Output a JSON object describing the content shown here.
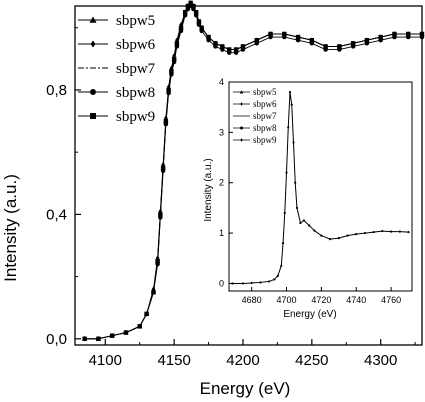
{
  "chart_data": [
    {
      "type": "scatter",
      "xlabel": "Energy (eV)",
      "ylabel": "Intensity (a.u.)",
      "xlim": [
        4078,
        4330
      ],
      "ylim": [
        -0.02,
        1.07
      ],
      "x_ticks": [
        {
          "value": 4100,
          "label": "4100"
        },
        {
          "value": 4150,
          "label": "4150"
        },
        {
          "value": 4200,
          "label": "4200"
        },
        {
          "value": 4250,
          "label": "4250"
        },
        {
          "value": 4300,
          "label": "4300"
        }
      ],
      "y_ticks": [
        {
          "value": 0.0,
          "label": "0,0"
        },
        {
          "value": 0.4,
          "label": "0,4"
        },
        {
          "value": 0.8,
          "label": "0,8"
        }
      ],
      "legend_position": "top-left",
      "legend_labels": [
        "sbpw5",
        "sbpw6",
        "sbpw7",
        "sbpw8",
        "sbpw9"
      ],
      "series": [
        {
          "name": "sbpw5",
          "marker": "triangle",
          "x": [
            4085,
            4095,
            4105,
            4115,
            4125,
            4130,
            4135,
            4138,
            4140,
            4142,
            4144,
            4146,
            4148,
            4150,
            4152,
            4155,
            4158,
            4160,
            4162,
            4164,
            4166,
            4168,
            4170,
            4175,
            4180,
            4185,
            4190,
            4195,
            4200,
            4210,
            4220,
            4230,
            4240,
            4250,
            4260,
            4270,
            4280,
            4290,
            4300,
            4310,
            4320,
            4330
          ],
          "y": [
            0.0,
            0.0,
            0.01,
            0.02,
            0.04,
            0.08,
            0.15,
            0.25,
            0.4,
            0.55,
            0.7,
            0.8,
            0.86,
            0.9,
            0.95,
            1.0,
            1.05,
            1.07,
            1.08,
            1.07,
            1.05,
            1.02,
            1.0,
            0.97,
            0.95,
            0.94,
            0.93,
            0.93,
            0.94,
            0.96,
            0.98,
            0.98,
            0.97,
            0.96,
            0.94,
            0.94,
            0.95,
            0.96,
            0.97,
            0.98,
            0.98,
            0.98
          ]
        },
        {
          "name": "sbpw6",
          "marker": "diamond",
          "x": [
            4085,
            4095,
            4105,
            4115,
            4125,
            4130,
            4135,
            4138,
            4140,
            4142,
            4144,
            4146,
            4148,
            4150,
            4152,
            4155,
            4158,
            4160,
            4162,
            4164,
            4166,
            4168,
            4170,
            4175,
            4180,
            4185,
            4190,
            4195,
            4200,
            4210,
            4220,
            4230,
            4240,
            4250,
            4260,
            4270,
            4280,
            4290,
            4300,
            4310,
            4320,
            4330
          ],
          "y": [
            0.0,
            0.0,
            0.01,
            0.02,
            0.04,
            0.08,
            0.16,
            0.26,
            0.41,
            0.56,
            0.71,
            0.81,
            0.87,
            0.91,
            0.96,
            1.01,
            1.05,
            1.07,
            1.08,
            1.07,
            1.05,
            1.02,
            1.0,
            0.97,
            0.95,
            0.94,
            0.93,
            0.93,
            0.94,
            0.96,
            0.98,
            0.98,
            0.97,
            0.96,
            0.94,
            0.94,
            0.95,
            0.96,
            0.97,
            0.98,
            0.98,
            0.98
          ]
        },
        {
          "name": "sbpw7",
          "marker": "none",
          "x": [
            4085,
            4095,
            4105,
            4115,
            4125,
            4130,
            4135,
            4138,
            4140,
            4142,
            4144,
            4146,
            4148,
            4150,
            4152,
            4155,
            4158,
            4160,
            4162,
            4164,
            4166,
            4168,
            4170,
            4175,
            4180,
            4185,
            4190,
            4195,
            4200,
            4210,
            4220,
            4230,
            4240,
            4250,
            4260,
            4270,
            4280,
            4290,
            4300,
            4310,
            4320,
            4330
          ],
          "y": [
            0.0,
            0.0,
            0.01,
            0.02,
            0.04,
            0.08,
            0.15,
            0.25,
            0.4,
            0.55,
            0.7,
            0.8,
            0.86,
            0.9,
            0.95,
            1.0,
            1.05,
            1.07,
            1.08,
            1.07,
            1.05,
            1.02,
            1.0,
            0.97,
            0.95,
            0.94,
            0.93,
            0.93,
            0.94,
            0.96,
            0.98,
            0.98,
            0.97,
            0.96,
            0.94,
            0.94,
            0.95,
            0.96,
            0.97,
            0.98,
            0.98,
            0.98
          ]
        },
        {
          "name": "sbpw8",
          "marker": "circle",
          "x": [
            4085,
            4095,
            4105,
            4115,
            4125,
            4130,
            4135,
            4138,
            4140,
            4142,
            4144,
            4146,
            4148,
            4150,
            4152,
            4155,
            4158,
            4160,
            4162,
            4164,
            4166,
            4168,
            4170,
            4175,
            4180,
            4185,
            4190,
            4195,
            4200,
            4210,
            4220,
            4230,
            4240,
            4250,
            4260,
            4270,
            4280,
            4290,
            4300,
            4310,
            4320,
            4330
          ],
          "y": [
            0.0,
            0.0,
            0.01,
            0.02,
            0.04,
            0.08,
            0.15,
            0.24,
            0.39,
            0.54,
            0.69,
            0.79,
            0.85,
            0.89,
            0.94,
            0.99,
            1.04,
            1.06,
            1.07,
            1.06,
            1.04,
            1.01,
            0.99,
            0.96,
            0.94,
            0.93,
            0.92,
            0.92,
            0.93,
            0.95,
            0.97,
            0.97,
            0.96,
            0.95,
            0.93,
            0.93,
            0.94,
            0.95,
            0.96,
            0.97,
            0.97,
            0.97
          ]
        },
        {
          "name": "sbpw9",
          "marker": "square",
          "x": [
            4085,
            4095,
            4105,
            4115,
            4125,
            4130,
            4135,
            4138,
            4140,
            4142,
            4144,
            4146,
            4148,
            4150,
            4152,
            4155,
            4158,
            4160,
            4162,
            4164,
            4166,
            4168,
            4170,
            4175,
            4180,
            4185,
            4190,
            4195,
            4200,
            4210,
            4220,
            4230,
            4240,
            4250,
            4260,
            4270,
            4280,
            4290,
            4300,
            4310,
            4320,
            4330
          ],
          "y": [
            0.0,
            0.0,
            0.01,
            0.02,
            0.04,
            0.08,
            0.15,
            0.25,
            0.4,
            0.55,
            0.7,
            0.8,
            0.86,
            0.9,
            0.95,
            1.0,
            1.05,
            1.07,
            1.08,
            1.07,
            1.05,
            1.02,
            1.0,
            0.97,
            0.95,
            0.94,
            0.93,
            0.93,
            0.94,
            0.96,
            0.98,
            0.98,
            0.97,
            0.96,
            0.94,
            0.94,
            0.95,
            0.96,
            0.97,
            0.98,
            0.98,
            0.98
          ]
        }
      ]
    },
    {
      "type": "line",
      "inset": true,
      "xlabel": "Energy (eV)",
      "ylabel": "Intensity (a.u.)",
      "xlim": [
        4667,
        4772
      ],
      "ylim": [
        -0.15,
        4.0
      ],
      "x_ticks": [
        {
          "value": 4680,
          "label": "4680"
        },
        {
          "value": 4700,
          "label": "4700"
        },
        {
          "value": 4720,
          "label": "4720"
        },
        {
          "value": 4740,
          "label": "4740"
        },
        {
          "value": 4760,
          "label": "4760"
        }
      ],
      "y_ticks": [
        {
          "value": 0,
          "label": "0"
        },
        {
          "value": 1,
          "label": "1"
        },
        {
          "value": 2,
          "label": "2"
        },
        {
          "value": 3,
          "label": "3"
        },
        {
          "value": 4,
          "label": "4"
        }
      ],
      "legend_position": "top-left",
      "legend_labels": [
        "sbpw5",
        "sbpw6",
        "sbpw7",
        "sbpw8",
        "sbpw9"
      ],
      "x": [
        4669,
        4675,
        4680,
        4685,
        4690,
        4693,
        4695,
        4697,
        4698,
        4699,
        4700,
        4701,
        4702,
        4703,
        4704,
        4705,
        4706,
        4708,
        4710,
        4713,
        4716,
        4720,
        4725,
        4730,
        4735,
        4740,
        4745,
        4750,
        4755,
        4760,
        4765,
        4770
      ],
      "y": [
        0.0,
        0.0,
        0.01,
        0.02,
        0.04,
        0.08,
        0.15,
        0.35,
        0.8,
        1.4,
        2.2,
        3.1,
        3.8,
        3.55,
        2.8,
        2.0,
        1.5,
        1.2,
        1.25,
        1.15,
        1.05,
        0.95,
        0.88,
        0.9,
        0.95,
        0.98,
        1.0,
        1.02,
        1.04,
        1.03,
        1.03,
        1.02
      ]
    }
  ]
}
